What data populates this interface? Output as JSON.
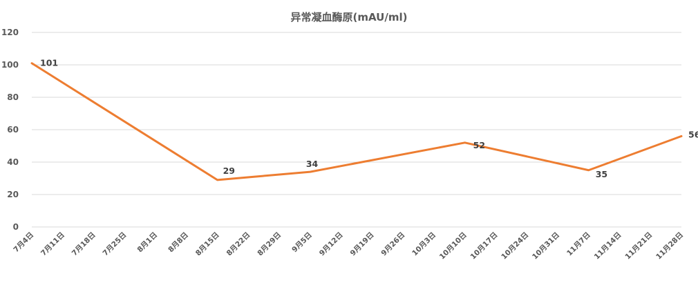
{
  "chart_data": {
    "type": "line",
    "title": "异常凝血酶原(mAU/ml)",
    "categories": [
      "7月4日",
      "7月11日",
      "7月18日",
      "7月25日",
      "8月1日",
      "8月8日",
      "8月15日",
      "8月22日",
      "8月29日",
      "9月5日",
      "9月12日",
      "9月19日",
      "9月26日",
      "10月3日",
      "10月10日",
      "10月17日",
      "10月24日",
      "10月31日",
      "11月7日",
      "11月14日",
      "11月21日",
      "11月28日"
    ],
    "series": [
      {
        "points": [
          {
            "x": "7月4日",
            "y": 101
          },
          {
            "x": "8月15日",
            "y": 29
          },
          {
            "x": "9月5日",
            "y": 34
          },
          {
            "x": "10月10日",
            "y": 52
          },
          {
            "x": "11月7日",
            "y": 35
          },
          {
            "x": "11月28日",
            "y": 56
          }
        ],
        "color": "#ED7D31"
      }
    ],
    "y_ticks": [
      "0",
      "20",
      "40",
      "60",
      "80",
      "100",
      "120"
    ],
    "ylim": [
      0,
      120
    ],
    "grid": true,
    "legend": "none",
    "colors": {
      "line": "#ED7D31",
      "grid": "#D9D9D9",
      "text": "#595959",
      "label": "#404040"
    }
  }
}
